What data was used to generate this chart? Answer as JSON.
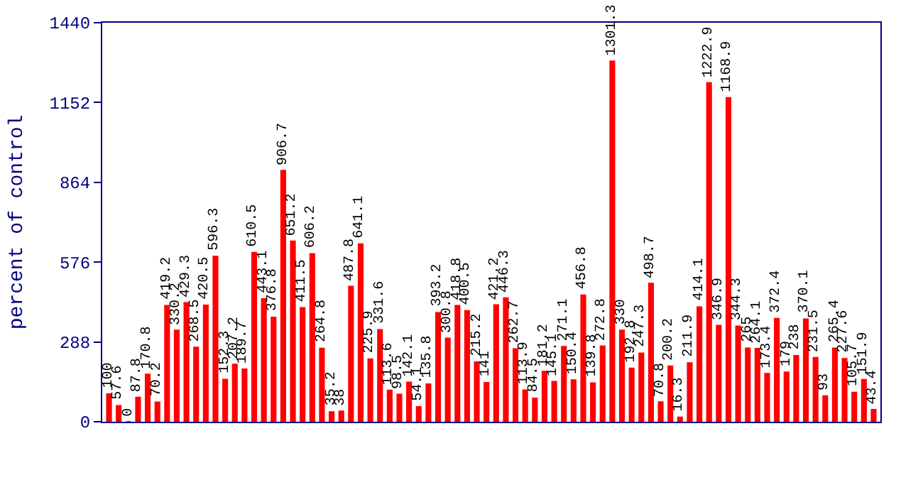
{
  "chart_data": {
    "type": "bar",
    "ylabel": "percent of control",
    "categories": [
      null,
      null,
      null,
      null,
      null,
      null,
      null,
      null,
      null,
      null,
      null,
      null,
      null,
      null,
      null,
      null,
      null,
      null,
      null,
      null,
      null,
      null,
      null,
      null,
      null,
      null,
      null,
      null,
      null,
      null,
      null,
      null,
      null,
      null,
      null,
      null,
      null,
      null,
      null,
      null,
      null,
      null,
      null,
      null,
      null,
      null,
      null,
      null,
      null,
      null,
      null,
      null,
      null,
      null,
      null,
      null,
      null,
      null,
      null,
      null,
      null,
      null,
      null,
      null,
      null,
      null,
      null,
      null,
      null,
      null,
      null,
      null,
      null,
      null,
      null,
      null,
      null,
      null,
      null,
      null
    ],
    "values": [
      100,
      57.6,
      0,
      87.8,
      170.8,
      70.2,
      419.2,
      330.2,
      429.3,
      268.5,
      420.5,
      596.3,
      152.3,
      207.2,
      189.7,
      610.5,
      443.1,
      376.8,
      906.7,
      651.2,
      411.5,
      606.2,
      264.8,
      35.2,
      38,
      487.8,
      641.1,
      225.9,
      331.6,
      113.6,
      98.5,
      142.1,
      54.1,
      135.8,
      393.2,
      300.8,
      418.8,
      400.5,
      215.2,
      141,
      421.2,
      446.3,
      262.7,
      113.9,
      84.5,
      181.2,
      145.1,
      271.1,
      150.4,
      456.8,
      139.8,
      272.8,
      1301.3,
      330,
      192.8,
      247.3,
      498.7,
      70.8,
      200.2,
      16.3,
      211.9,
      414.1,
      1222.9,
      346.9,
      1168.9,
      344.3,
      265,
      264.1,
      173.4,
      372.4,
      179,
      238,
      370.1,
      231.5,
      93,
      265.4,
      227.6,
      105.7,
      151.9,
      43.4
    ],
    "color": "#ff0000",
    "ylim": [
      0,
      1440
    ],
    "yticks": [
      0,
      288,
      576,
      864,
      1152,
      1440
    ],
    "data_labels": true
  }
}
